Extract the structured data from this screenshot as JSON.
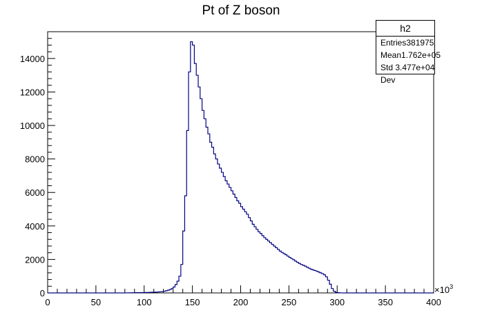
{
  "chart_data": {
    "type": "histogram",
    "title": "Pt of Z boson",
    "x_exponent_label": "×10",
    "x_exponent_power": "3",
    "xlim": [
      0,
      400
    ],
    "ylim": [
      0,
      15600
    ],
    "x_ticks": [
      0,
      50,
      100,
      150,
      200,
      250,
      300,
      350,
      400
    ],
    "x_tick_labels": [
      "0",
      "50",
      "100",
      "150",
      "200",
      "250",
      "300",
      "350",
      "400"
    ],
    "y_ticks": [
      0,
      2000,
      4000,
      6000,
      8000,
      10000,
      12000,
      14000
    ],
    "y_tick_labels": [
      "0",
      "2000",
      "4000",
      "6000",
      "8000",
      "10000",
      "12000",
      "14000"
    ],
    "line_color": "#000080",
    "bin_width": 2,
    "bin_edges_range": [
      0,
      400
    ],
    "values": [
      0,
      0,
      0,
      0,
      0,
      0,
      0,
      0,
      0,
      0,
      0,
      0,
      0,
      0,
      0,
      0,
      0,
      0,
      0,
      0,
      0,
      0,
      0,
      0,
      0,
      0,
      0,
      0,
      0,
      0,
      0,
      0,
      0,
      0,
      0,
      0,
      0,
      0,
      0,
      0,
      3,
      5,
      8,
      10,
      12,
      14,
      16,
      18,
      20,
      22,
      25,
      28,
      30,
      35,
      40,
      45,
      50,
      60,
      70,
      80,
      100,
      130,
      160,
      200,
      260,
      350,
      500,
      700,
      1000,
      1700,
      3700,
      5800,
      9700,
      13200,
      15000,
      14800,
      13700,
      13000,
      12300,
      11600,
      10900,
      10400,
      9900,
      9500,
      9000,
      8700,
      8300,
      8000,
      7700,
      7450,
      7200,
      6950,
      6700,
      6500,
      6300,
      6100,
      5900,
      5700,
      5500,
      5350,
      5150,
      5000,
      4850,
      4700,
      4500,
      4300,
      4100,
      3950,
      3800,
      3650,
      3550,
      3420,
      3300,
      3200,
      3100,
      3000,
      2900,
      2800,
      2700,
      2600,
      2500,
      2420,
      2350,
      2280,
      2200,
      2120,
      2050,
      1980,
      1900,
      1830,
      1760,
      1700,
      1650,
      1600,
      1540,
      1480,
      1420,
      1380,
      1340,
      1300,
      1250,
      1200,
      1150,
      1080,
      960,
      760,
      520,
      260,
      100,
      40,
      15,
      5,
      2,
      0,
      0,
      0,
      0,
      0,
      0,
      0,
      0,
      0,
      0,
      0,
      0,
      0,
      0,
      0,
      0,
      0,
      0,
      0,
      0,
      0,
      0,
      0,
      0,
      0,
      0,
      0,
      0,
      0,
      0,
      0,
      0,
      0,
      0,
      0,
      0,
      0,
      0,
      0,
      0,
      0,
      0,
      0,
      0,
      0,
      0,
      0
    ],
    "stats_box": {
      "name": "h2",
      "rows": [
        {
          "label": "Entries",
          "value": "381975"
        },
        {
          "label": "Mean",
          "value": "1.762e+05"
        },
        {
          "label": "Std Dev",
          "value": "3.477e+04"
        }
      ]
    }
  }
}
